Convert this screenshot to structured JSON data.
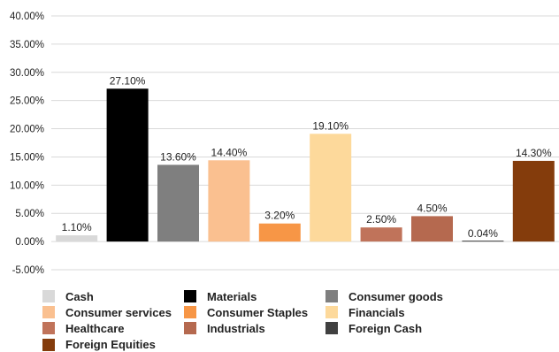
{
  "chart_data": {
    "type": "bar",
    "categories": [
      "Cash",
      "Materials",
      "Consumer goods",
      "Consumer services",
      "Consumer Staples",
      "Financials",
      "Healthcare",
      "Industrials",
      "Foreign Cash",
      "Foreign Equities"
    ],
    "values": [
      1.1,
      27.1,
      13.6,
      14.4,
      3.2,
      19.1,
      2.5,
      4.5,
      0.04,
      14.3
    ],
    "data_labels": [
      "1.10%",
      "27.10%",
      "13.60%",
      "14.40%",
      "3.20%",
      "19.10%",
      "2.50%",
      "4.50%",
      "0.04%",
      "14.30%"
    ],
    "colors": [
      "#d9d9d9",
      "#000000",
      "#7f7f7f",
      "#fac090",
      "#f79646",
      "#fdd99b",
      "#c0735a",
      "#b5694f",
      "#404040",
      "#843c0c"
    ],
    "ylim": [
      -5,
      40
    ],
    "yticks": [
      40,
      35,
      30,
      25,
      20,
      15,
      10,
      5,
      0,
      -5
    ],
    "ytick_labels": [
      "40.00%",
      "35.00%",
      "30.00%",
      "25.00%",
      "20.00%",
      "15.00%",
      "10.00%",
      "5.00%",
      "0.00%",
      "-5.00%"
    ],
    "grid": true,
    "legend_position": "bottom",
    "title": "",
    "xlabel": "",
    "ylabel": ""
  }
}
